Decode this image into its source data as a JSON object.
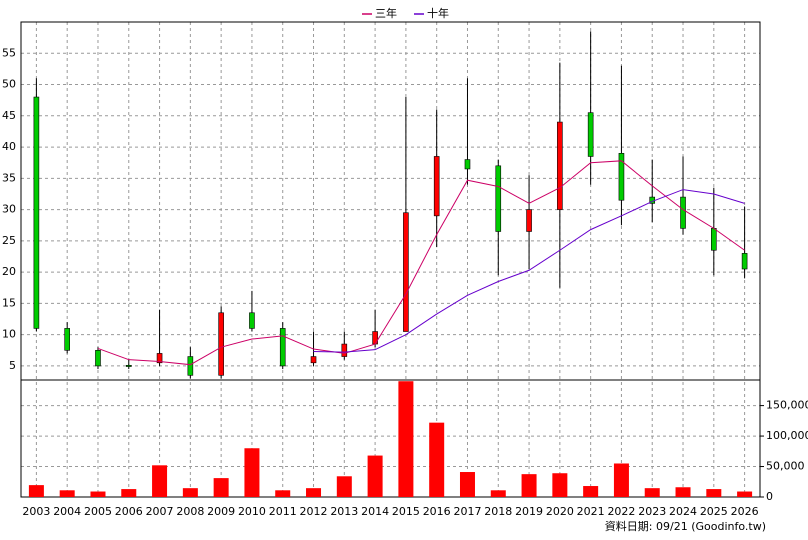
{
  "chart_data": {
    "type": "candlestick",
    "categories": [
      "2003",
      "2004",
      "2005",
      "2006",
      "2007",
      "2008",
      "2009",
      "2010",
      "2011",
      "2012",
      "2013",
      "2014",
      "2015",
      "2016",
      "2017",
      "2018",
      "2019",
      "2020",
      "2021",
      "2022",
      "2023",
      "2024",
      "2025",
      "2026"
    ],
    "candles": {
      "open": [
        48,
        11,
        7.5,
        5.1,
        5.5,
        6.5,
        3.5,
        13.5,
        11,
        5.5,
        6.5,
        8.5,
        10.5,
        29,
        38,
        37,
        26.5,
        30,
        45.5,
        39,
        32,
        32,
        27,
        23
      ],
      "high": [
        51,
        12,
        8,
        6,
        14,
        8,
        14.5,
        17,
        12,
        10.5,
        10.5,
        14,
        48,
        46,
        51,
        38,
        35.5,
        53.5,
        58.5,
        53,
        38,
        38.5,
        33.5,
        30.5
      ],
      "low": [
        10.5,
        7,
        4.5,
        4.5,
        5,
        3,
        3,
        10.5,
        4.5,
        5,
        6,
        8,
        10.5,
        24,
        34,
        19.5,
        20.5,
        17.5,
        34,
        27.5,
        28,
        26,
        19.5,
        19
      ],
      "close": [
        11,
        7.5,
        5,
        4.9,
        7,
        3.5,
        13.5,
        11,
        5,
        6.5,
        8.5,
        10.5,
        29.5,
        38.5,
        36.5,
        26.5,
        30,
        44,
        38.5,
        31.5,
        31,
        27,
        23.5,
        20.5
      ],
      "up_color": "#ff0000",
      "down_color": "#00cc00"
    },
    "series": [
      {
        "name": "三年",
        "color": "#cc0066",
        "values": [
          null,
          null,
          7.8,
          6,
          5.7,
          5.2,
          8,
          9.3,
          9.8,
          7.7,
          7,
          8.5,
          16.5,
          26,
          34.7,
          33.7,
          31,
          33.5,
          37.5,
          37.8,
          33.8,
          30,
          27,
          23.5
        ]
      },
      {
        "name": "十年",
        "color": "#6600cc",
        "values": [
          null,
          null,
          null,
          null,
          null,
          null,
          null,
          null,
          null,
          7.3,
          7.2,
          7.6,
          10,
          13.3,
          16.3,
          18.5,
          20.3,
          23.5,
          26.8,
          29,
          31.3,
          33.2,
          32.5,
          31
        ]
      }
    ],
    "volume": {
      "axis": "y2",
      "color": "#ff0000",
      "values": [
        19500,
        11000,
        9000,
        13000,
        52000,
        14500,
        31000,
        80000,
        11000,
        14500,
        34000,
        68000,
        190000,
        122000,
        41000,
        11000,
        37500,
        39000,
        18000,
        55000,
        14500,
        16000,
        13000,
        9000
      ]
    },
    "ylim": [
      2.75,
      60
    ],
    "yticks": [
      5,
      10,
      15,
      20,
      25,
      30,
      35,
      40,
      45,
      50,
      55
    ],
    "y2lim": [
      0,
      192000
    ],
    "y2ticks": [
      0,
      {
        "value": 50000,
        "label": "50,000"
      },
      {
        "value": 100000,
        "label": "100,000"
      },
      {
        "value": 150000,
        "label": "150,000"
      }
    ],
    "grid": true,
    "source": "資料日期: 09/21 (Goodinfo.tw)"
  }
}
